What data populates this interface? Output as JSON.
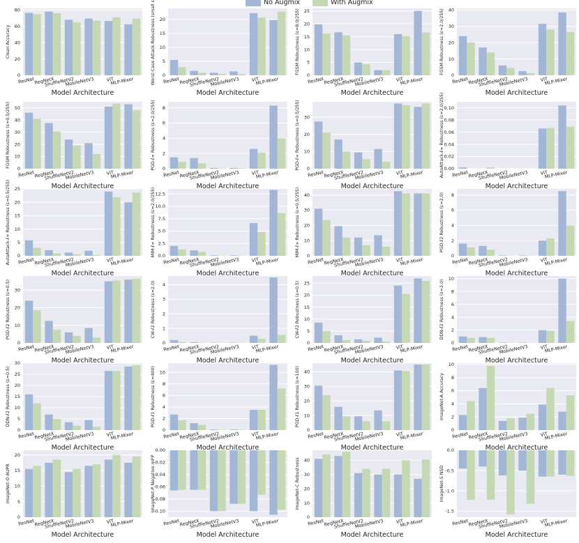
{
  "legend": {
    "series": [
      {
        "name": "No Augmix",
        "color": "#a3b6d6"
      },
      {
        "name": "With Augmix",
        "color": "#c4d8b4"
      }
    ],
    "placement": "top-center"
  },
  "models": [
    "ResNet",
    "RegNetX",
    "ShuffleNetV2",
    "MobileNetV3",
    "ViT",
    "MLP-Mixer"
  ],
  "chart_data": [
    {
      "type": "bar",
      "xlabel": "Model Architecture",
      "ylabel": "Clean Accuracy",
      "ylim": [
        0,
        82
      ],
      "yticks": [
        0,
        20,
        40,
        60,
        80
      ],
      "series": [
        {
          "name": "No Augmix",
          "values": [
            76.5,
            78,
            68,
            69.5,
            66.5,
            62.5
          ]
        },
        {
          "name": "With Augmix",
          "values": [
            75,
            76,
            65,
            67,
            71,
            69.5
          ]
        }
      ]
    },
    {
      "type": "bar",
      "xlabel": "Model Architecture",
      "ylabel": "Worst-Case Attack Robustness (small ε)",
      "ylim": [
        0,
        24
      ],
      "yticks": [
        0,
        5,
        10,
        15,
        20
      ],
      "series": [
        {
          "name": "No Augmix",
          "values": [
            5.5,
            1.6,
            0.9,
            1.4,
            22.3,
            19.8
          ]
        },
        {
          "name": "With Augmix",
          "values": [
            2.9,
            0.9,
            0.5,
            0.4,
            20.7,
            22.8
          ]
        }
      ]
    },
    {
      "type": "bar",
      "xlabel": "Model Architecture",
      "ylabel": "FGSM Robustness (ε=8.0/255)",
      "ylim": [
        0,
        26
      ],
      "yticks": [
        0,
        5,
        10,
        15,
        20,
        25
      ],
      "series": [
        {
          "name": "No Augmix",
          "values": [
            19.8,
            16.7,
            5,
            2,
            16,
            25
          ]
        },
        {
          "name": "With Augmix",
          "values": [
            16.2,
            15.5,
            4.3,
            2,
            15.2,
            16.6
          ]
        }
      ]
    },
    {
      "type": "bar",
      "xlabel": "Model Architecture",
      "ylabel": "FGSM Robustness (ε=2.0/255)",
      "ylim": [
        0,
        41
      ],
      "yticks": [
        0,
        10,
        20,
        30,
        40
      ],
      "series": [
        {
          "name": "No Augmix",
          "values": [
            24,
            17,
            6,
            2.5,
            31.5,
            38.5
          ]
        },
        {
          "name": "With Augmix",
          "values": [
            20,
            14,
            4.5,
            1.3,
            28,
            26.5
          ]
        }
      ]
    },
    {
      "type": "bar",
      "xlabel": "Model Architecture",
      "ylabel": "FGSM Robustness (ε=0.5/255)",
      "ylim": [
        0,
        55
      ],
      "yticks": [
        0,
        10,
        20,
        30,
        40,
        50
      ],
      "series": [
        {
          "name": "No Augmix",
          "values": [
            46,
            37.5,
            24,
            21,
            51,
            53
          ]
        },
        {
          "name": "With Augmix",
          "values": [
            41,
            30.5,
            19,
            12,
            53.5,
            48
          ]
        }
      ]
    },
    {
      "type": "bar",
      "xlabel": "Model Architecture",
      "ylabel": "PGD-ℓ∞ Robustness (ε=2.0/255)",
      "ylim": [
        0,
        8.8
      ],
      "yticks": [
        0,
        2,
        4,
        6,
        8
      ],
      "series": [
        {
          "name": "No Augmix",
          "values": [
            1.5,
            1.4,
            0.1,
            0.1,
            2.6,
            8.3
          ]
        },
        {
          "name": "With Augmix",
          "values": [
            0.9,
            0.7,
            0.05,
            0.05,
            2.1,
            4
          ]
        }
      ]
    },
    {
      "type": "bar",
      "xlabel": "Model Architecture",
      "ylabel": "PGD-ℓ∞ Robustness (ε=0.5/255)",
      "ylim": [
        0,
        39
      ],
      "yticks": [
        0,
        10,
        20,
        30
      ],
      "series": [
        {
          "name": "No Augmix",
          "values": [
            27.5,
            17,
            9.5,
            11.5,
            38,
            36
          ]
        },
        {
          "name": "With Augmix",
          "values": [
            21,
            10,
            5.5,
            4,
            37,
            38
          ]
        }
      ]
    },
    {
      "type": "bar",
      "xlabel": "Model Architecture",
      "ylabel": "AutoAttack-ℓ∞ Robustness (ε=2.0/255)",
      "ylim": [
        0,
        0.11
      ],
      "yticks": [
        0,
        0.02,
        0.04,
        0.06,
        0.08,
        0.1
      ],
      "series": [
        {
          "name": "No Augmix",
          "values": [
            0.002,
            0,
            0,
            0,
            0.066,
            0.104
          ]
        },
        {
          "name": "With Augmix",
          "values": [
            0,
            0.002,
            0,
            0,
            0.067,
            0.069
          ]
        }
      ]
    },
    {
      "type": "bar",
      "xlabel": "Model Architecture",
      "ylabel": "AutoAttack-ℓ∞ Robustness (ε=0.5/255)",
      "ylim": [
        0,
        25
      ],
      "yticks": [
        0,
        5,
        10,
        15,
        20,
        25
      ],
      "series": [
        {
          "name": "No Augmix",
          "values": [
            5.8,
            2.1,
            1.2,
            1.9,
            24,
            20
          ]
        },
        {
          "name": "With Augmix",
          "values": [
            3,
            0.9,
            0.6,
            0.3,
            21.9,
            23.6
          ]
        }
      ]
    },
    {
      "type": "bar",
      "xlabel": "Model Architecture",
      "ylabel": "MIM-ℓ∞ Robustness (ε=2.0/255)",
      "ylim": [
        0,
        13.5
      ],
      "yticks": [
        0,
        2.5,
        5.0,
        7.5,
        10.0,
        12.5
      ],
      "series": [
        {
          "name": "No Augmix",
          "values": [
            2,
            1.1,
            0.1,
            0.1,
            6.6,
            13.3
          ]
        },
        {
          "name": "With Augmix",
          "values": [
            1.3,
            0.8,
            0.05,
            0.05,
            4.8,
            8.6
          ]
        }
      ]
    },
    {
      "type": "bar",
      "xlabel": "Model Architecture",
      "ylabel": "MIM-ℓ∞ Robustness (ε=0.5/255)",
      "ylim": [
        0,
        44
      ],
      "yticks": [
        0,
        10,
        20,
        30,
        40
      ],
      "series": [
        {
          "name": "No Augmix",
          "values": [
            31,
            19.5,
            12,
            13.5,
            42.5,
            41
          ]
        },
        {
          "name": "With Augmix",
          "values": [
            23.5,
            12,
            7,
            6,
            41,
            41
          ]
        }
      ]
    },
    {
      "type": "bar",
      "xlabel": "Model Architecture",
      "ylabel": "PGD-ℓ2 Robustness (ε=2.0)",
      "ylim": [
        0,
        8.8
      ],
      "yticks": [
        0,
        2,
        4,
        6,
        8
      ],
      "series": [
        {
          "name": "No Augmix",
          "values": [
            1.6,
            1.3,
            0.05,
            0.05,
            2,
            8.5
          ]
        },
        {
          "name": "With Augmix",
          "values": [
            1.1,
            0.8,
            0.02,
            0.02,
            2.3,
            4
          ]
        }
      ]
    },
    {
      "type": "bar",
      "xlabel": "Model Architecture",
      "ylabel": "PGD-ℓ2 Robustness (ε=0.5)",
      "ylim": [
        0,
        38
      ],
      "yticks": [
        0,
        10,
        20,
        30
      ],
      "series": [
        {
          "name": "No Augmix",
          "values": [
            24,
            12.5,
            6,
            8.5,
            35,
            36
          ]
        },
        {
          "name": "With Augmix",
          "values": [
            18.5,
            7.5,
            4,
            3,
            35.5,
            36.5
          ]
        }
      ]
    },
    {
      "type": "bar",
      "xlabel": "Model Architecture",
      "ylabel": "CW-ℓ2 Robustness (ε=2.0)",
      "ylim": [
        0,
        4.6
      ],
      "yticks": [
        0,
        1,
        2,
        3,
        4
      ],
      "series": [
        {
          "name": "No Augmix",
          "values": [
            0.2,
            0.05,
            0.02,
            0.02,
            0.5,
            4.5
          ]
        },
        {
          "name": "With Augmix",
          "values": [
            0.08,
            0.02,
            0.01,
            0.01,
            0.28,
            0.55
          ]
        }
      ]
    },
    {
      "type": "bar",
      "xlabel": "Model Architecture",
      "ylabel": "CW-ℓ2 Robustness (ε=0.5)",
      "ylim": [
        0,
        28
      ],
      "yticks": [
        0,
        5,
        10,
        15,
        20,
        25
      ],
      "series": [
        {
          "name": "No Augmix",
          "values": [
            8.5,
            3.2,
            1.5,
            2.2,
            24,
            27
          ]
        },
        {
          "name": "With Augmix",
          "values": [
            5,
            1.2,
            0.9,
            0.6,
            20.5,
            26
          ]
        }
      ]
    },
    {
      "type": "bar",
      "xlabel": "Model Architecture",
      "ylabel": "DDN-ℓ2 Robustness (ε=2.0)",
      "ylim": [
        0,
        10.4
      ],
      "yticks": [
        0,
        2,
        4,
        6,
        8,
        10
      ],
      "series": [
        {
          "name": "No Augmix",
          "values": [
            1,
            0.9,
            0.05,
            0.05,
            2,
            10
          ]
        },
        {
          "name": "With Augmix",
          "values": [
            0.8,
            0.8,
            0.02,
            0.02,
            1.9,
            3.4
          ]
        }
      ]
    },
    {
      "type": "bar",
      "xlabel": "Model Architecture",
      "ylabel": "DDN-ℓ2 Robustness (ε=0.5)",
      "ylim": [
        0,
        30
      ],
      "yticks": [
        0,
        5,
        10,
        15,
        20,
        25,
        30
      ],
      "series": [
        {
          "name": "No Augmix",
          "values": [
            16,
            7,
            3.5,
            4.5,
            26.5,
            28.5
          ]
        },
        {
          "name": "With Augmix",
          "values": [
            12,
            5,
            2,
            1.5,
            26.5,
            29
          ]
        }
      ]
    },
    {
      "type": "bar",
      "xlabel": "Model Architecture",
      "ylabel": "PGD-ℓ1 Robustness (ε=400)",
      "ylim": [
        0,
        11.6
      ],
      "yticks": [
        0,
        2,
        4,
        6,
        8,
        10
      ],
      "series": [
        {
          "name": "No Augmix",
          "values": [
            2.7,
            1.2,
            0.1,
            0.1,
            3.5,
            11.3
          ]
        },
        {
          "name": "With Augmix",
          "values": [
            1.7,
            0.9,
            0.05,
            0.05,
            3.5,
            7.2
          ]
        }
      ]
    },
    {
      "type": "bar",
      "xlabel": "Model Architecture",
      "ylabel": "PGD-ℓ1 Robustness (ε=100)",
      "ylim": [
        0,
        46
      ],
      "yticks": [
        0,
        10,
        20,
        30,
        40
      ],
      "series": [
        {
          "name": "No Augmix",
          "values": [
            30.5,
            16,
            9.5,
            13.5,
            41,
            45
          ]
        },
        {
          "name": "With Augmix",
          "values": [
            24,
            9.5,
            6,
            6,
            40.5,
            45
          ]
        }
      ]
    },
    {
      "type": "bar",
      "xlabel": "Model Architecture",
      "ylabel": "ImageNet-A Accuracy",
      "ylim": [
        0,
        10.2
      ],
      "yticks": [
        0,
        2,
        4,
        6,
        8,
        10
      ],
      "series": [
        {
          "name": "No Augmix",
          "values": [
            2.3,
            6.4,
            1.4,
            1.9,
            3.9,
            2.8
          ]
        },
        {
          "name": "With Augmix",
          "values": [
            4.4,
            9.8,
            1.8,
            2.5,
            6.4,
            5.3
          ]
        }
      ]
    },
    {
      "type": "bar",
      "xlabel": "Model Architecture",
      "ylabel": "ImageNet-O AUPR",
      "ylim": [
        0,
        21.5
      ],
      "yticks": [
        0,
        5,
        10,
        15,
        20
      ],
      "series": [
        {
          "name": "No Augmix",
          "values": [
            15.5,
            17.5,
            14.5,
            16.5,
            18.5,
            17.5
          ]
        },
        {
          "name": "With Augmix",
          "values": [
            16.5,
            18.5,
            15.5,
            17,
            20,
            19.5
          ]
        }
      ]
    },
    {
      "type": "bar",
      "xlabel": "Model Architecture",
      "ylabel": "ImageNet-P Negative mFP",
      "ylim": [
        -0.11,
        0
      ],
      "yticks": [
        0,
        -0.02,
        -0.04,
        -0.06,
        -0.08,
        -0.1
      ],
      "series": [
        {
          "name": "No Augmix",
          "values": [
            -0.066,
            -0.065,
            -0.1,
            -0.088,
            -0.1,
            -0.106
          ]
        },
        {
          "name": "With Augmix",
          "values": [
            -0.065,
            -0.065,
            -0.1,
            -0.088,
            -0.073,
            -0.098
          ]
        }
      ]
    },
    {
      "type": "bar",
      "xlabel": "Model Architecture",
      "ylabel": "ImageNet-C Robustness",
      "ylim": [
        0,
        47
      ],
      "yticks": [
        0,
        10,
        20,
        30,
        40
      ],
      "series": [
        {
          "name": "No Augmix",
          "values": [
            41,
            43,
            31,
            30,
            30,
            27
          ]
        },
        {
          "name": "With Augmix",
          "values": [
            44,
            46,
            34,
            34,
            40,
            40.5
          ]
        }
      ]
    },
    {
      "type": "bar",
      "xlabel": "Model Architecture",
      "ylabel": "ImageNet-S NSD",
      "ylim": [
        -1.65,
        0
      ],
      "yticks": [
        0.0,
        -0.5,
        -1.0,
        -1.5
      ],
      "series": [
        {
          "name": "No Augmix",
          "values": [
            -0.45,
            -0.4,
            -0.62,
            -0.5,
            -0.65,
            -0.6
          ]
        },
        {
          "name": "With Augmix",
          "values": [
            -1.22,
            -1.22,
            -1.58,
            -1.32,
            -0.65,
            -0.63
          ]
        }
      ]
    }
  ]
}
